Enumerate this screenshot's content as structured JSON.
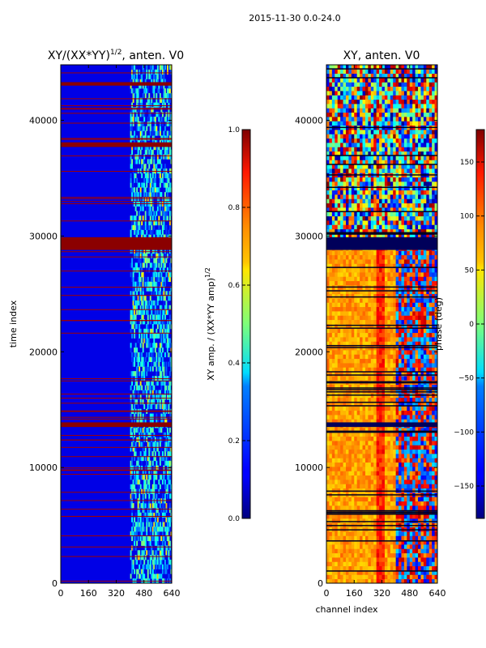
{
  "figure": {
    "suptitle": "2015-11-30 0.0-24.0"
  },
  "chart_data": [
    {
      "type": "heatmap",
      "title": "XY/(XX*YY)",
      "title_exponent": "1/2",
      "title_suffix": ", anten. V0",
      "xlabel": "",
      "ylabel": "time index",
      "xlim": [
        0,
        640
      ],
      "ylim": [
        0,
        44800
      ],
      "xticks": [
        0,
        160,
        320,
        480,
        640
      ],
      "yticks": [
        0,
        10000,
        20000,
        30000,
        40000
      ],
      "colormap": "jet",
      "colorbar": {
        "label": "XY amp. / (XX*YY amp)",
        "label_exponent": "1/2",
        "range": [
          0.0,
          1.0
        ],
        "ticks": [
          "0.0",
          "0.2",
          "0.4",
          "0.6",
          "0.8",
          "1.0"
        ],
        "tick_values": [
          0.0,
          0.2,
          0.4,
          0.6,
          0.8,
          1.0
        ]
      },
      "description_values": {
        "background_level": 0.1,
        "active_channel_range": [
          400,
          640
        ],
        "saturated_time_bands": [
          [
            28800,
            29900
          ],
          [
            13500,
            13900
          ],
          [
            37700,
            38100
          ],
          [
            43000,
            43300
          ]
        ]
      }
    },
    {
      "type": "heatmap",
      "title": "XY, anten. V0",
      "xlabel": "channel index",
      "ylabel": "",
      "xlim": [
        0,
        640
      ],
      "ylim": [
        0,
        44800
      ],
      "xticks": [
        0,
        160,
        320,
        480,
        640
      ],
      "yticks": [
        0,
        10000,
        20000,
        30000,
        40000
      ],
      "colormap": "jet",
      "colorbar": {
        "label": "phase (deg)",
        "range": [
          -180,
          180
        ],
        "ticks": [
          "−150",
          "−100",
          "−50",
          "0",
          "50",
          "100",
          "150"
        ],
        "tick_values": [
          -150,
          -100,
          -50,
          0,
          50,
          100,
          150
        ]
      }
    }
  ]
}
